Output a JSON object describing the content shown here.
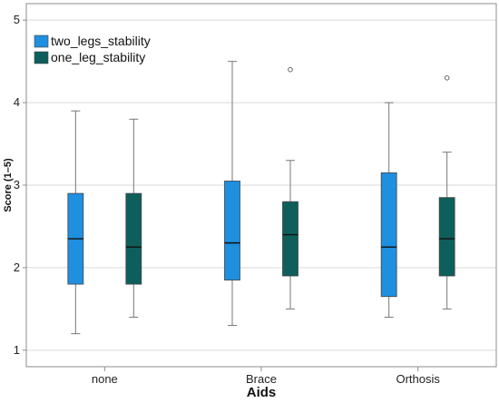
{
  "chart_data": {
    "type": "boxplot",
    "xlabel": "Aids",
    "ylabel": "Score (1–5)",
    "ylim": [
      0.8,
      5.2
    ],
    "y_ticks": [
      1,
      2,
      3,
      4,
      5
    ],
    "categories": [
      "none",
      "Brace",
      "Orthosis"
    ],
    "grid": "horizontal",
    "legend_position": "top-left",
    "series": [
      {
        "name": "two_legs_stability",
        "color": "#1f8fe0",
        "boxes": [
          {
            "min": 1.2,
            "q1": 1.8,
            "median": 2.35,
            "q3": 2.9,
            "max": 3.9,
            "outliers": []
          },
          {
            "min": 1.3,
            "q1": 1.85,
            "median": 2.3,
            "q3": 3.05,
            "max": 4.5,
            "outliers": []
          },
          {
            "min": 1.4,
            "q1": 1.65,
            "median": 2.25,
            "q3": 3.15,
            "max": 4.0,
            "outliers": []
          }
        ]
      },
      {
        "name": "one_leg_stability",
        "color": "#0e5f5c",
        "boxes": [
          {
            "min": 1.4,
            "q1": 1.8,
            "median": 2.25,
            "q3": 2.9,
            "max": 3.8,
            "outliers": []
          },
          {
            "min": 1.5,
            "q1": 1.9,
            "median": 2.4,
            "q3": 2.8,
            "max": 3.3,
            "outliers": [
              4.4
            ]
          },
          {
            "min": 1.5,
            "q1": 1.9,
            "median": 2.35,
            "q3": 2.85,
            "max": 3.4,
            "outliers": [
              4.3
            ]
          }
        ]
      }
    ]
  }
}
